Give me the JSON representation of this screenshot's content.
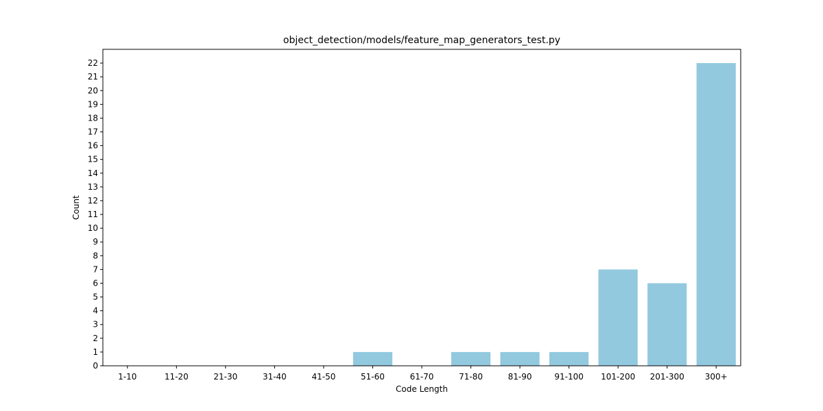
{
  "chart_data": {
    "type": "bar",
    "title": "object_detection/models/feature_map_generators_test.py",
    "xlabel": "Code Length",
    "ylabel": "Count",
    "categories": [
      "1-10",
      "11-20",
      "21-30",
      "31-40",
      "41-50",
      "51-60",
      "61-70",
      "71-80",
      "81-90",
      "91-100",
      "101-200",
      "201-300",
      "300+"
    ],
    "values": [
      0,
      0,
      0,
      0,
      0,
      1,
      0,
      1,
      1,
      1,
      7,
      6,
      22
    ],
    "ylim": [
      0,
      23
    ],
    "yticks": [
      0,
      1,
      2,
      3,
      4,
      5,
      6,
      7,
      8,
      9,
      10,
      11,
      12,
      13,
      14,
      15,
      16,
      17,
      18,
      19,
      20,
      21,
      22
    ],
    "bar_color": "#92c9df",
    "grid": false,
    "legend": "none"
  }
}
